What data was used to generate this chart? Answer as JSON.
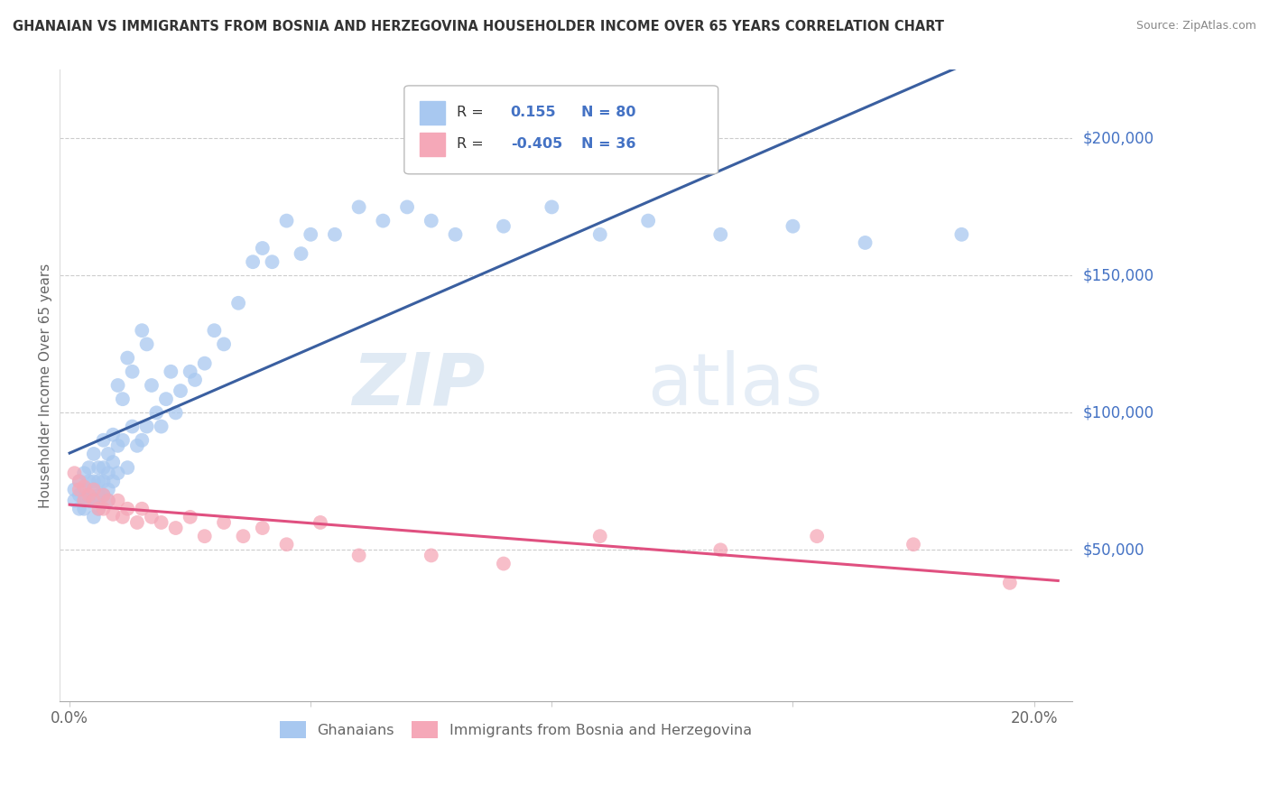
{
  "title": "GHANAIAN VS IMMIGRANTS FROM BOSNIA AND HERZEGOVINA HOUSEHOLDER INCOME OVER 65 YEARS CORRELATION CHART",
  "source": "Source: ZipAtlas.com",
  "ylabel": "Householder Income Over 65 years",
  "r_ghana": 0.155,
  "n_ghana": 80,
  "r_bosnia": -0.405,
  "n_bosnia": 36,
  "ghana_color": "#a8c8f0",
  "bosnia_color": "#f5a8b8",
  "ghana_line_color": "#3a5fa0",
  "bosnia_line_color": "#e05080",
  "xlim": [
    -0.002,
    0.208
  ],
  "ylim": [
    -5000,
    225000
  ],
  "ghana_x": [
    0.001,
    0.001,
    0.002,
    0.002,
    0.002,
    0.003,
    0.003,
    0.003,
    0.003,
    0.004,
    0.004,
    0.004,
    0.004,
    0.005,
    0.005,
    0.005,
    0.005,
    0.005,
    0.006,
    0.006,
    0.006,
    0.006,
    0.007,
    0.007,
    0.007,
    0.007,
    0.008,
    0.008,
    0.008,
    0.008,
    0.009,
    0.009,
    0.009,
    0.01,
    0.01,
    0.01,
    0.011,
    0.011,
    0.012,
    0.012,
    0.013,
    0.013,
    0.014,
    0.015,
    0.015,
    0.016,
    0.016,
    0.017,
    0.018,
    0.019,
    0.02,
    0.021,
    0.022,
    0.023,
    0.025,
    0.026,
    0.028,
    0.03,
    0.032,
    0.035,
    0.038,
    0.04,
    0.042,
    0.045,
    0.048,
    0.05,
    0.055,
    0.06,
    0.065,
    0.07,
    0.075,
    0.08,
    0.09,
    0.1,
    0.11,
    0.12,
    0.135,
    0.15,
    0.165,
    0.185
  ],
  "ghana_y": [
    68000,
    72000,
    65000,
    75000,
    70000,
    68000,
    78000,
    72000,
    65000,
    75000,
    80000,
    70000,
    68000,
    85000,
    75000,
    72000,
    68000,
    62000,
    80000,
    75000,
    70000,
    65000,
    90000,
    80000,
    75000,
    70000,
    85000,
    78000,
    72000,
    68000,
    92000,
    82000,
    75000,
    110000,
    88000,
    78000,
    105000,
    90000,
    120000,
    80000,
    115000,
    95000,
    88000,
    130000,
    90000,
    125000,
    95000,
    110000,
    100000,
    95000,
    105000,
    115000,
    100000,
    108000,
    115000,
    112000,
    118000,
    130000,
    125000,
    140000,
    155000,
    160000,
    155000,
    170000,
    158000,
    165000,
    165000,
    175000,
    170000,
    175000,
    170000,
    165000,
    168000,
    175000,
    165000,
    170000,
    165000,
    168000,
    162000,
    165000
  ],
  "bosnia_x": [
    0.001,
    0.002,
    0.002,
    0.003,
    0.003,
    0.004,
    0.005,
    0.005,
    0.006,
    0.007,
    0.007,
    0.008,
    0.009,
    0.01,
    0.011,
    0.012,
    0.014,
    0.015,
    0.017,
    0.019,
    0.022,
    0.025,
    0.028,
    0.032,
    0.036,
    0.04,
    0.045,
    0.052,
    0.06,
    0.075,
    0.09,
    0.11,
    0.135,
    0.155,
    0.175,
    0.195
  ],
  "bosnia_y": [
    78000,
    72000,
    75000,
    68000,
    73000,
    70000,
    72000,
    68000,
    65000,
    70000,
    65000,
    68000,
    63000,
    68000,
    62000,
    65000,
    60000,
    65000,
    62000,
    60000,
    58000,
    62000,
    55000,
    60000,
    55000,
    58000,
    52000,
    60000,
    48000,
    48000,
    45000,
    55000,
    50000,
    55000,
    52000,
    38000
  ]
}
